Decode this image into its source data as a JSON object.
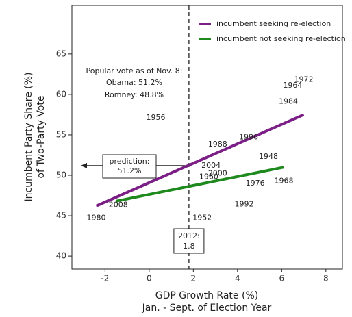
{
  "chart_data": {
    "type": "scatter",
    "x_label": [
      "GDP Growth Rate (%)",
      "Jan. - Sept. of Election Year"
    ],
    "y_label": [
      "Incumbent Party Share (%)",
      "of Two-Party Vote"
    ],
    "xlim": [
      -3.5,
      8.75
    ],
    "ylim": [
      38.4,
      71
    ],
    "xticks": [
      -2,
      0,
      2,
      4,
      6,
      8
    ],
    "yticks": [
      40,
      45,
      50,
      55,
      60,
      65
    ],
    "series": [
      {
        "name": "incumbent seeking re-election",
        "color": "#7b1f86",
        "labels": [
          "1956",
          "1964",
          "1972",
          "1984",
          "1996",
          "1948",
          "1976",
          "1992",
          "1980",
          "2004"
        ],
        "x": [
          0.3,
          6.5,
          7.0,
          6.3,
          4.5,
          5.4,
          4.8,
          4.3,
          -2.4,
          2.8
        ],
        "values": [
          57.1,
          61.1,
          61.8,
          59.1,
          54.7,
          52.3,
          49.0,
          46.4,
          44.7,
          51.2
        ],
        "fit": {
          "x": [
            -2.4,
            7.0
          ],
          "y": [
            46.2,
            57.5
          ]
        }
      },
      {
        "name": "incumbent not seeking re-election",
        "color": "#1e8a1e",
        "labels": [
          "1988",
          "1960",
          "2000",
          "1968",
          "1952",
          "2008"
        ],
        "x": [
          3.1,
          2.7,
          3.1,
          6.1,
          2.4,
          -1.4
        ],
        "values": [
          53.8,
          49.8,
          50.2,
          49.3,
          44.7,
          46.3
        ],
        "fit": {
          "x": [
            -1.5,
            6.1
          ],
          "y": [
            46.8,
            51.0
          ]
        }
      }
    ],
    "vline": {
      "label": "2012:",
      "value": 1.8
    },
    "prediction": {
      "label": "prediction:",
      "value": 51.2,
      "value_label": "51.2%"
    },
    "popular_vote": {
      "title": "Popular vote as of Nov. 8:",
      "lines": [
        {
          "text": "Obama: 51.2%",
          "color": "#1f2f9a"
        },
        {
          "text": "Romney: 48.8%",
          "color": "#c0392b"
        }
      ]
    }
  }
}
